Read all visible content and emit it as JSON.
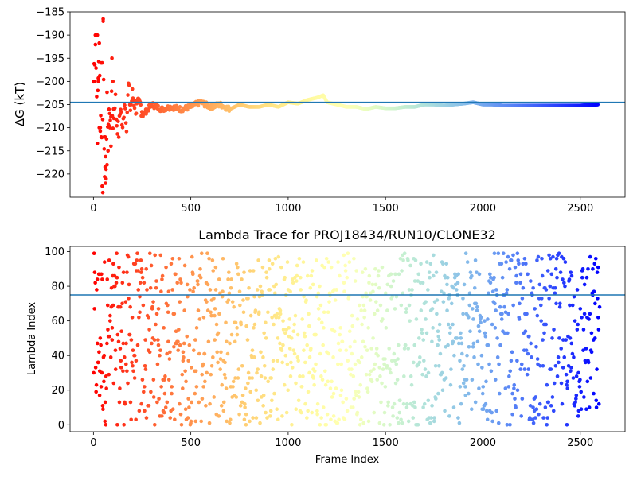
{
  "chart_data": [
    {
      "type": "scatter",
      "title": "",
      "xlabel": "",
      "ylabel": "ΔG (kT)",
      "xlim": [
        -120,
        2730
      ],
      "ylim": [
        -225,
        -185
      ],
      "x_ticks": [
        0,
        500,
        1000,
        1500,
        2000,
        2500
      ],
      "y_ticks": [
        -185,
        -190,
        -195,
        -200,
        -205,
        -210,
        -215,
        -220
      ],
      "x_tick_labels": [
        "0",
        "500",
        "1000",
        "1500",
        "2000",
        "2500"
      ],
      "y_tick_labels": [
        "−185",
        "−190",
        "−195",
        "−200",
        "−205",
        "−210",
        "−215",
        "−220"
      ],
      "hline": -204.5,
      "colormap": "rainbow (violet→red) by frame index, red at frame 0",
      "series": [
        {
          "x": [
            0,
            10,
            20,
            25,
            30,
            35,
            40,
            45,
            50,
            55,
            60,
            65,
            70,
            80,
            90,
            100,
            110,
            120,
            130,
            140,
            150,
            160,
            170,
            180,
            190,
            200,
            220,
            240,
            260,
            280,
            300,
            350,
            400,
            450,
            500,
            550,
            600,
            650,
            700,
            750,
            800,
            850,
            900,
            950,
            1000,
            1050,
            1100,
            1150,
            1180,
            1200,
            1250,
            1300,
            1350,
            1400,
            1450,
            1500,
            1550,
            1600,
            1650,
            1700,
            1750,
            1800,
            1850,
            1900,
            1950,
            2000,
            2050,
            2100,
            2200,
            2300,
            2400,
            2500,
            2590
          ],
          "y": [
            -200,
            -190,
            -210,
            -200,
            -190,
            -212,
            -196,
            -224,
            -187,
            -212,
            -222,
            -218,
            -206,
            -210,
            -205,
            -208,
            -203,
            -209,
            -211,
            -205,
            -211,
            -204,
            -209,
            -201,
            -206,
            -203,
            -206,
            -205,
            -207,
            -206,
            -205,
            -206,
            -205.5,
            -206,
            -205.5,
            -204.5,
            -205.5,
            -205,
            -206,
            -205,
            -205.5,
            -205.5,
            -205,
            -205.5,
            -204.5,
            -204.8,
            -204,
            -203.5,
            -203,
            -204.5,
            -205,
            -205.5,
            -205.5,
            -206,
            -205.5,
            -205.8,
            -205.8,
            -205.5,
            -205.5,
            -205,
            -205,
            -205.2,
            -205,
            -204.8,
            -204.5,
            -205,
            -205,
            -205.2,
            -205.2,
            -205.2,
            -205.2,
            -205.2,
            -205
          ]
        }
      ]
    },
    {
      "type": "scatter",
      "title": "Lambda Trace for PROJ18434/RUN10/CLONE32",
      "xlabel": "Frame Index",
      "ylabel": "Lambda Index",
      "xlim": [
        -120,
        2730
      ],
      "ylim": [
        -4,
        103
      ],
      "x_ticks": [
        0,
        500,
        1000,
        1500,
        2000,
        2500
      ],
      "y_ticks": [
        0,
        20,
        40,
        60,
        80,
        100
      ],
      "x_tick_labels": [
        "0",
        "500",
        "1000",
        "1500",
        "2000",
        "2500"
      ],
      "y_tick_labels": [
        "0",
        "20",
        "40",
        "60",
        "80",
        "100"
      ],
      "hline": 75,
      "colormap": "rainbow (violet→red) by frame index, red at frame 0",
      "description": "Approximately uniform random lambda index values between 0 and 99 for frames 0–2600 (sampled)",
      "n_points_rendered": 1300,
      "frame_range": [
        0,
        2600
      ],
      "lambda_range": [
        0,
        99
      ]
    }
  ]
}
